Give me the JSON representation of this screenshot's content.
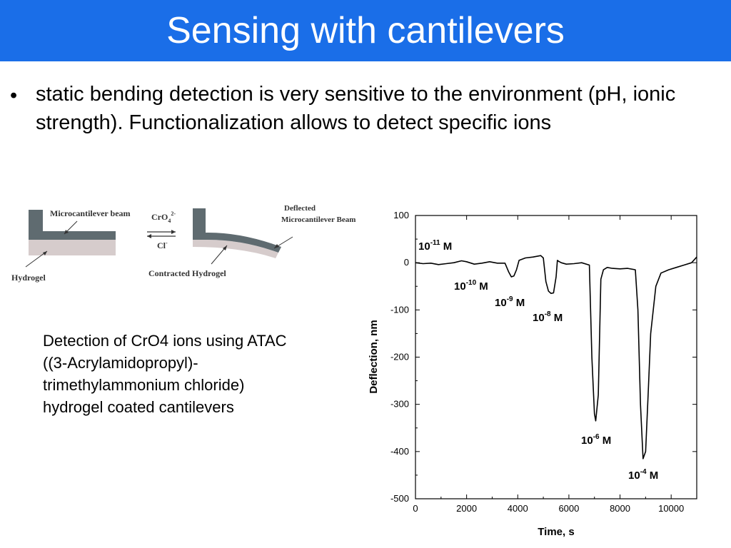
{
  "slide": {
    "title": "Sensing with cantilevers",
    "bullet_marker": "•",
    "bullet_text": "static bending detection is very sensitive to the environment (pH, ionic strength). Functionalization allows to detect specific ions",
    "caption_lines": [
      "Detection of CrO4 ions using ATAC",
      "((3-Acrylamidopropyl)-",
      "trimethylammonium chloride)",
      "hydrogel coated cantilevers"
    ]
  },
  "diagram": {
    "label_beam": "Microcantilever beam",
    "label_hydrogel": "Hydrogel",
    "label_cro4": "CrO",
    "label_cro4_sub": "4",
    "label_cro4_sup": "2-",
    "label_cl": "Cl",
    "label_cl_sup": "-",
    "label_deflected_1": "Deflected",
    "label_deflected_2": "Microcantilever Beam",
    "label_contracted": "Contracted Hydrogel",
    "colors": {
      "beam": "#5f6b70",
      "hydrogel": "#d6cccc"
    }
  },
  "chart_data": {
    "type": "line",
    "xlabel": "Time, s",
    "ylabel": "Deflection, nm",
    "xlim": [
      0,
      11000
    ],
    "ylim": [
      -500,
      100
    ],
    "xticks": [
      0,
      2000,
      4000,
      6000,
      8000,
      10000
    ],
    "yticks": [
      100,
      0,
      -100,
      -200,
      -300,
      -400,
      -500
    ],
    "series": [
      {
        "x": [
          0,
          300,
          600,
          900,
          1200,
          1500,
          1800,
          2000,
          2300,
          2600,
          2900,
          3200,
          3500,
          3650,
          3750,
          3850,
          3950,
          4050,
          4300,
          4600,
          4900,
          5000,
          5100,
          5200,
          5300,
          5400,
          5500,
          5550,
          5600,
          5700,
          5900,
          6200,
          6500,
          6800,
          6900,
          7000,
          7050,
          7150,
          7250,
          7350,
          7500,
          7700,
          8000,
          8300,
          8600,
          8700,
          8800,
          8900,
          9000,
          9100,
          9200,
          9400,
          9600,
          9900,
          10200,
          10500,
          10800,
          11000
        ],
        "y": [
          0,
          -2,
          -1,
          -4,
          -2,
          0,
          4,
          2,
          -3,
          -1,
          2,
          -1,
          -1,
          -20,
          -30,
          -28,
          -15,
          5,
          10,
          12,
          15,
          10,
          -40,
          -60,
          -65,
          -64,
          -30,
          5,
          3,
          0,
          -3,
          -2,
          0,
          -5,
          -200,
          -320,
          -335,
          -280,
          -35,
          -15,
          -10,
          -12,
          -13,
          -12,
          -15,
          -100,
          -300,
          -415,
          -400,
          -280,
          -150,
          -50,
          -22,
          -15,
          -10,
          -5,
          0,
          12
        ]
      }
    ],
    "annotations": [
      {
        "base": "10",
        "exp": "-11",
        "unit": "M"
      },
      {
        "base": "10",
        "exp": "-10",
        "unit": "M"
      },
      {
        "base": "10",
        "exp": "-9",
        "unit": "M"
      },
      {
        "base": "10",
        "exp": "-8",
        "unit": "M"
      },
      {
        "base": "10",
        "exp": "-6",
        "unit": "M"
      },
      {
        "base": "10",
        "exp": "-4",
        "unit": "M"
      }
    ]
  }
}
